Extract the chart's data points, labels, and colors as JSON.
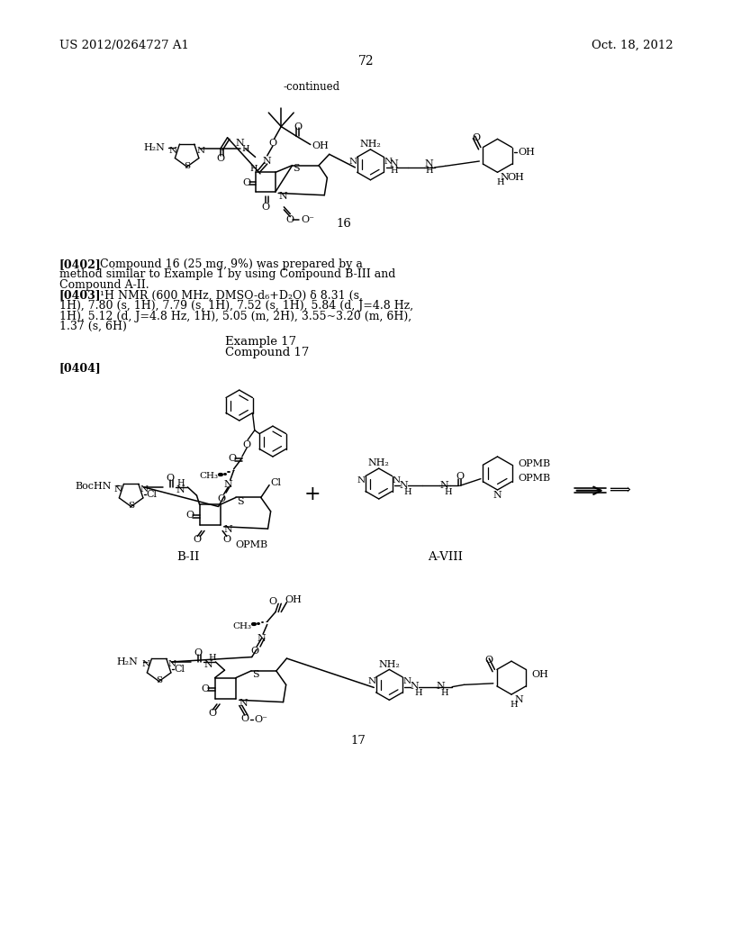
{
  "page_header_left": "US 2012/0264727 A1",
  "page_header_right": "Oct. 18, 2012",
  "page_number": "72",
  "continued_label": "-continued",
  "compound16_label": "16",
  "compound17_label": "17",
  "example17_text": "Example 17",
  "compound17_text": "Compound 17",
  "para0402_bold": "[0402]",
  "para0402_rest": "  Compound 16 (25 mg, 9%) was prepared by a",
  "para0402_line2": "method similar to Example 1 by using Compound B-III and",
  "para0402_line3": "Compound A-II.",
  "para0403_bold": "[0403]",
  "para0403_rest": "  ¹H NMR (600 MHz, DMSO-d₆+D₂O) δ 8.31 (s,",
  "para0403_line2": "1H), 7.80 (s, 1H), 7.79 (s, 1H), 7.52 (s, 1H), 5.84 (d, J=4.8 Hz,",
  "para0403_line3": "1H), 5.12 (d, J=4.8 Hz, 1H), 5.05 (m, 2H), 3.55~3.20 (m, 6H),",
  "para0403_line4": "1.37 (s, 6H)",
  "para0404_bold": "[0404]",
  "bii_label": "B-II",
  "aviii_label": "A-VIII",
  "bg_color": "#ffffff",
  "text_color": "#000000"
}
